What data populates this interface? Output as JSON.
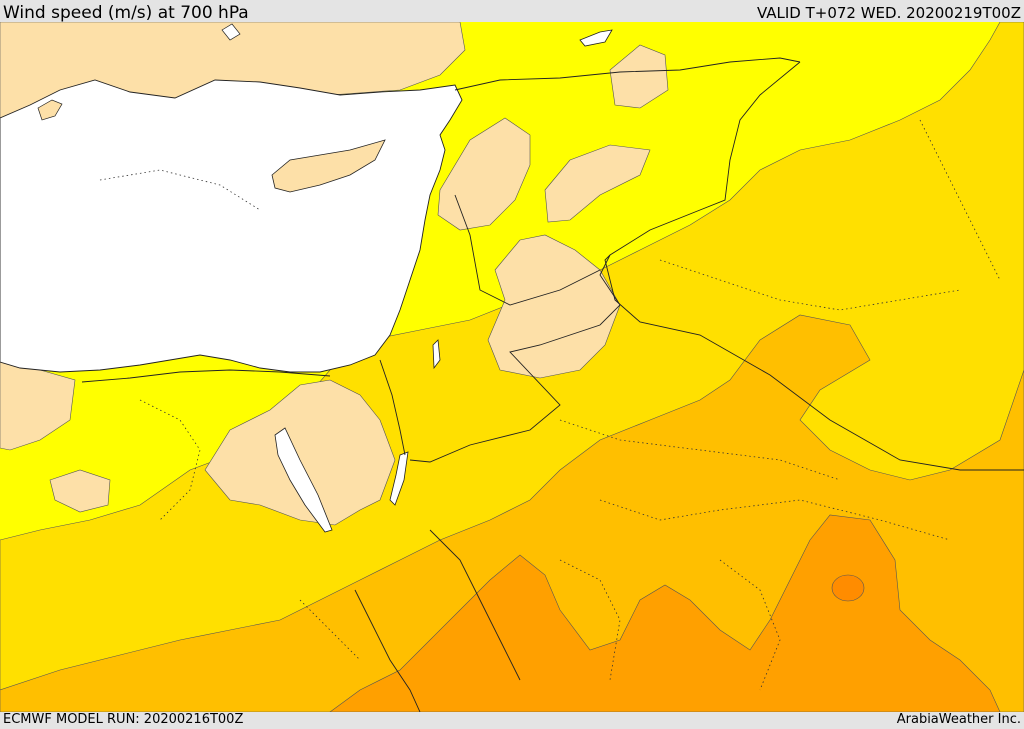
{
  "header": {
    "title": "Wind speed (m/s) at 700 hPa",
    "valid": "VALID T+072 WED. 20200219T00Z"
  },
  "footer": {
    "model_run": "ECMWF MODEL RUN: 20200216T00Z",
    "credit": "ArabiaWeather Inc."
  },
  "colors": {
    "sea": "#ffffff",
    "band_light": "#fde0a8",
    "band_yellow": "#ffff00",
    "band_gold": "#ffe000",
    "band_amber": "#ffbf00",
    "band_orange": "#ffa000",
    "band_dark_orange": "#ff8c00"
  }
}
